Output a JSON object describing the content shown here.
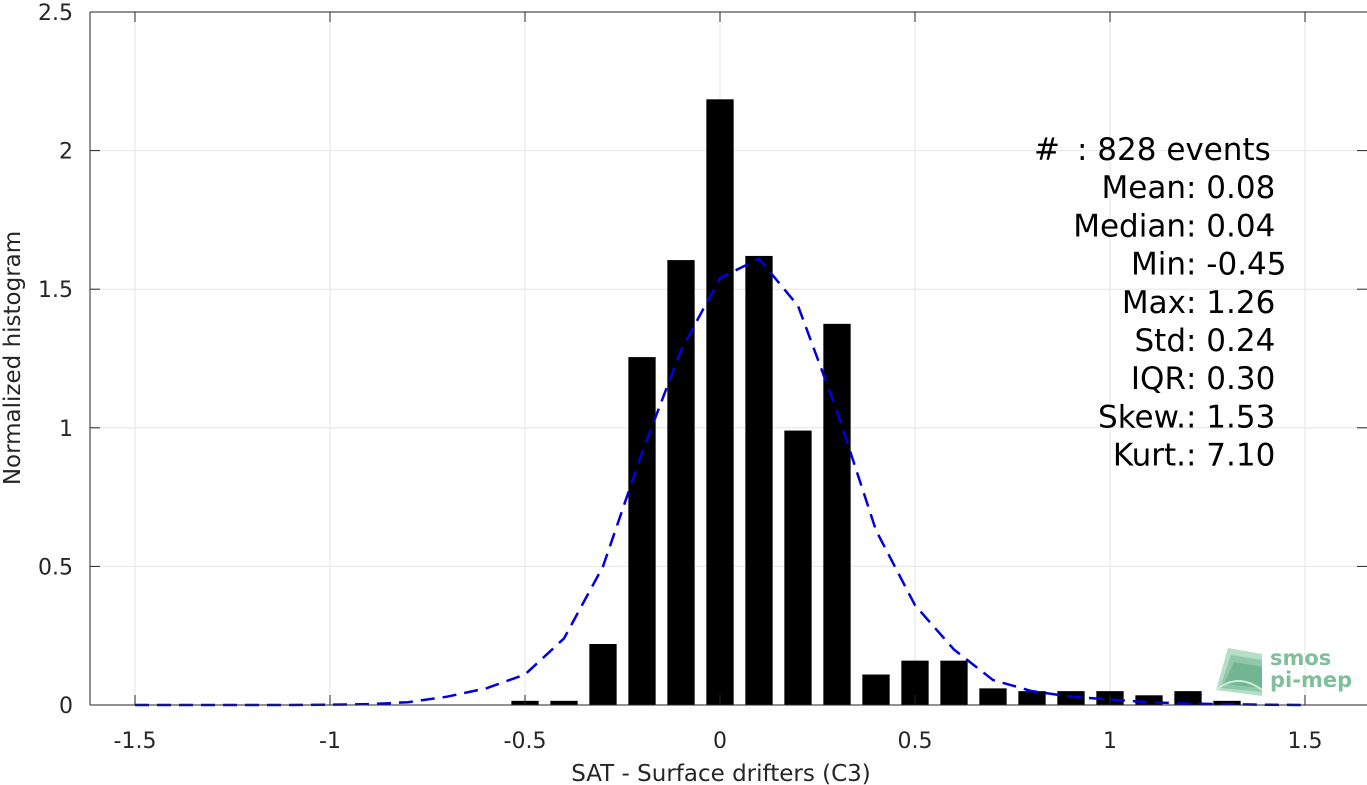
{
  "chart_data": {
    "type": "bar",
    "xlabel": "SAT - Surface drifters (C3)",
    "ylabel": "Normalized histogram",
    "xlim": [
      -1.65,
      1.65
    ],
    "ylim": [
      0,
      2.5
    ],
    "xticks": [
      -1.5,
      -1,
      -0.5,
      0,
      0.5,
      1,
      1.5
    ],
    "xtick_labels": [
      "-1.5",
      "-1",
      "-0.5",
      "0",
      "0.5",
      "1",
      "1.5"
    ],
    "yticks": [
      0,
      0.5,
      1,
      1.5,
      2,
      2.5
    ],
    "ytick_labels": [
      "0",
      "0.5",
      "1",
      "1.5",
      "2",
      "2.5"
    ],
    "grid": true,
    "bar_color": "#000000",
    "bar_width": 0.07,
    "bars": {
      "x": [
        -0.5,
        -0.4,
        -0.3,
        -0.2,
        -0.1,
        0.0,
        0.1,
        0.2,
        0.3,
        0.4,
        0.5,
        0.6,
        0.7,
        0.8,
        0.9,
        1.0,
        1.1,
        1.2,
        1.3
      ],
      "values": [
        0.015,
        0.015,
        0.22,
        1.255,
        1.605,
        2.185,
        1.62,
        0.99,
        1.375,
        0.11,
        0.16,
        0.16,
        0.06,
        0.05,
        0.05,
        0.05,
        0.035,
        0.05,
        0.015
      ]
    },
    "fit_line": {
      "style": "dashed",
      "color": "#0000dd",
      "x": [
        -1.5,
        -1.4,
        -1.3,
        -1.2,
        -1.1,
        -1.0,
        -0.9,
        -0.8,
        -0.7,
        -0.6,
        -0.5,
        -0.4,
        -0.3,
        -0.2,
        -0.1,
        0.0,
        0.1,
        0.2,
        0.3,
        0.4,
        0.5,
        0.6,
        0.7,
        0.8,
        0.9,
        1.0,
        1.1,
        1.2,
        1.3,
        1.4,
        1.5
      ],
      "y": [
        0,
        0,
        0,
        0,
        0,
        0.001,
        0.003,
        0.01,
        0.03,
        0.06,
        0.11,
        0.24,
        0.5,
        0.91,
        1.28,
        1.54,
        1.61,
        1.44,
        1.06,
        0.63,
        0.36,
        0.2,
        0.09,
        0.05,
        0.03,
        0.02,
        0.01,
        0.005,
        0.003,
        0.001,
        0
      ]
    },
    "stats": [
      {
        "label": "#  ",
        "value": ": 828 events"
      },
      {
        "label": "Mean ",
        "value": ": 0.08"
      },
      {
        "label": "Median ",
        "value": ": 0.04"
      },
      {
        "label": "Min ",
        "value": ": -0.45"
      },
      {
        "label": "Max ",
        "value": ": 1.26"
      },
      {
        "label": "Std ",
        "value": ": 0.24"
      },
      {
        "label": "IQR ",
        "value": ": 0.30"
      },
      {
        "label": "Skew. ",
        "value": ": 1.53"
      },
      {
        "label": "Kurt. ",
        "value": ": 7.10"
      }
    ]
  },
  "logo": {
    "line1": "smos",
    "line2": "pi-mep",
    "color": "#7fbf9c"
  }
}
